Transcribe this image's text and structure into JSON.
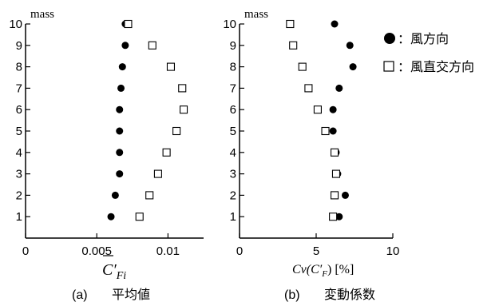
{
  "chart_data": [
    {
      "type": "scatter",
      "title": "",
      "panel_label": "(a)",
      "caption": "平均値",
      "ylabel": "mass",
      "xlabel_base": "C′",
      "xlabel_sub": "Fi",
      "xlim": [
        0,
        0.0125
      ],
      "ylim": [
        0,
        10
      ],
      "xticks": [
        0,
        0.005,
        0.01
      ],
      "xtick_labels": [
        "0",
        "0.005",
        "0.01"
      ],
      "yticks": [
        1,
        2,
        3,
        4,
        5,
        6,
        7,
        8,
        9,
        10
      ],
      "ytick_labels": [
        "1",
        "2",
        "3",
        "4",
        "5",
        "6",
        "7",
        "8",
        "9",
        "10"
      ],
      "series": [
        {
          "name": "風方向",
          "marker": "filled-circle",
          "points": [
            {
              "x": 0.006,
              "y": 1
            },
            {
              "x": 0.0063,
              "y": 2
            },
            {
              "x": 0.0066,
              "y": 3
            },
            {
              "x": 0.0066,
              "y": 4
            },
            {
              "x": 0.0066,
              "y": 5
            },
            {
              "x": 0.0066,
              "y": 6
            },
            {
              "x": 0.0067,
              "y": 7
            },
            {
              "x": 0.0068,
              "y": 8
            },
            {
              "x": 0.007,
              "y": 9
            },
            {
              "x": 0.007,
              "y": 10
            }
          ]
        },
        {
          "name": "風直交方向",
          "marker": "open-square",
          "points": [
            {
              "x": 0.008,
              "y": 1
            },
            {
              "x": 0.0087,
              "y": 2
            },
            {
              "x": 0.0093,
              "y": 3
            },
            {
              "x": 0.0099,
              "y": 4
            },
            {
              "x": 0.0106,
              "y": 5
            },
            {
              "x": 0.0111,
              "y": 6
            },
            {
              "x": 0.011,
              "y": 7
            },
            {
              "x": 0.0102,
              "y": 8
            },
            {
              "x": 0.0089,
              "y": 9
            },
            {
              "x": 0.0072,
              "y": 10
            }
          ]
        }
      ]
    },
    {
      "type": "scatter",
      "title": "",
      "panel_label": "(b)",
      "caption": "変動係数",
      "ylabel": "mass",
      "xlabel_base": "Cv(C′",
      "xlabel_sub": "F",
      "xlabel_tail": ") [%]",
      "xlim": [
        0,
        10
      ],
      "ylim": [
        0,
        10
      ],
      "xticks": [
        0,
        5,
        10
      ],
      "xtick_labels": [
        "0",
        "5",
        "10"
      ],
      "yticks": [
        1,
        2,
        3,
        4,
        5,
        6,
        7,
        8,
        9,
        10
      ],
      "ytick_labels": [
        "1",
        "2",
        "3",
        "4",
        "5",
        "6",
        "7",
        "8",
        "9",
        "10"
      ],
      "series": [
        {
          "name": "風方向",
          "marker": "filled-circle",
          "points": [
            {
              "x": 6.5,
              "y": 1
            },
            {
              "x": 6.9,
              "y": 2
            },
            {
              "x": 6.4,
              "y": 3
            },
            {
              "x": 6.3,
              "y": 4
            },
            {
              "x": 6.1,
              "y": 5
            },
            {
              "x": 6.1,
              "y": 6
            },
            {
              "x": 6.5,
              "y": 7
            },
            {
              "x": 7.4,
              "y": 8
            },
            {
              "x": 7.2,
              "y": 9
            },
            {
              "x": 6.2,
              "y": 10
            }
          ]
        },
        {
          "name": "風直交方向",
          "marker": "open-square",
          "points": [
            {
              "x": 6.1,
              "y": 1
            },
            {
              "x": 6.2,
              "y": 2
            },
            {
              "x": 6.3,
              "y": 3
            },
            {
              "x": 6.2,
              "y": 4
            },
            {
              "x": 5.6,
              "y": 5
            },
            {
              "x": 5.1,
              "y": 6
            },
            {
              "x": 4.5,
              "y": 7
            },
            {
              "x": 4.1,
              "y": 8
            },
            {
              "x": 3.5,
              "y": 9
            },
            {
              "x": 3.3,
              "y": 10
            }
          ]
        }
      ]
    }
  ],
  "legend": {
    "placement": "top-right",
    "items": [
      {
        "marker": "filled-circle",
        "label": "：風方向"
      },
      {
        "marker": "open-square",
        "label": "：風直交方向"
      }
    ]
  }
}
